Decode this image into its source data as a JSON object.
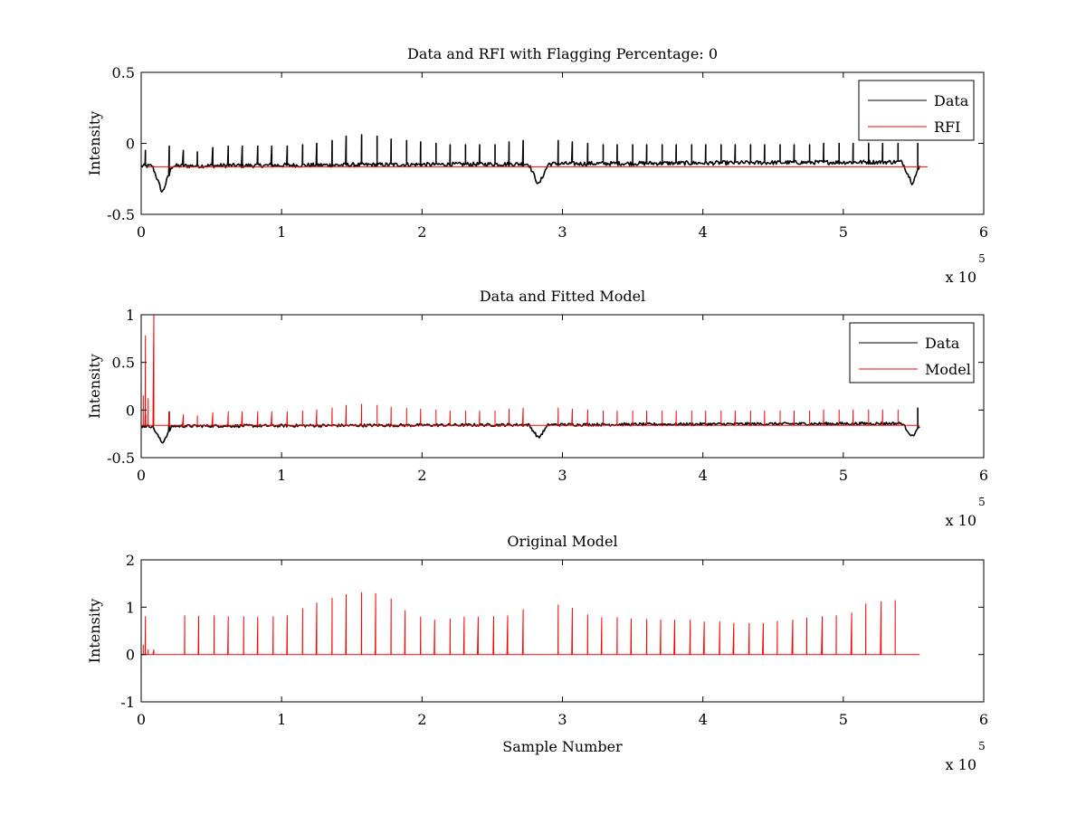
{
  "chart_data": [
    {
      "type": "line",
      "title": "Data and RFI with Flagging Percentage: 0",
      "xlabel": "",
      "ylabel": "Intensity",
      "xlim": [
        0,
        600000
      ],
      "ylim": [
        -0.5,
        0.5
      ],
      "xticks": [
        0,
        100000,
        200000,
        300000,
        400000,
        500000,
        600000
      ],
      "xtick_labels": [
        "0",
        "1",
        "2",
        "3",
        "4",
        "5",
        "6"
      ],
      "yticks": [
        -0.5,
        0,
        0.5
      ],
      "ytick_labels": [
        "-0.5",
        "0",
        "0.5"
      ],
      "x_multiplier": {
        "base": "x 10",
        "exponent": "5"
      },
      "legend_position": "top-right",
      "legend": [
        {
          "name": "Data",
          "color": "#000000"
        },
        {
          "name": "RFI",
          "color": "#ff0000"
        }
      ],
      "series": [
        {
          "name": "Data",
          "color": "#000000",
          "style": "noisy-baseline",
          "baseline": -0.16,
          "noise": 0.015,
          "x_end": 555000,
          "dips": [
            [
              15000,
              -0.35
            ],
            [
              283000,
              -0.31
            ],
            [
              549000,
              -0.31
            ]
          ],
          "spikes": [
            [
              3000,
              -0.05
            ],
            [
              20000,
              -0.02
            ],
            [
              30000,
              -0.05
            ],
            [
              40000,
              -0.06
            ],
            [
              51000,
              -0.03
            ],
            [
              62000,
              -0.02
            ],
            [
              72000,
              -0.02
            ],
            [
              83000,
              -0.02
            ],
            [
              93000,
              -0.02
            ],
            [
              104000,
              -0.02
            ],
            [
              115000,
              -0.01
            ],
            [
              125000,
              0.0
            ],
            [
              136000,
              0.02
            ],
            [
              146000,
              0.05
            ],
            [
              157000,
              0.06
            ],
            [
              168000,
              0.05
            ],
            [
              178000,
              0.03
            ],
            [
              189000,
              0.02
            ],
            [
              199000,
              0.01
            ],
            [
              210000,
              0.0
            ],
            [
              220000,
              -0.01
            ],
            [
              231000,
              -0.01
            ],
            [
              241000,
              -0.01
            ],
            [
              252000,
              -0.01
            ],
            [
              262000,
              0.01
            ],
            [
              272000,
              0.02
            ],
            [
              297000,
              0.02
            ],
            [
              307000,
              0.01
            ],
            [
              318000,
              0.0
            ],
            [
              329000,
              -0.01
            ],
            [
              339000,
              -0.01
            ],
            [
              350000,
              -0.01
            ],
            [
              360000,
              -0.01
            ],
            [
              371000,
              -0.01
            ],
            [
              381000,
              -0.01
            ],
            [
              392000,
              -0.01
            ],
            [
              402000,
              -0.01
            ],
            [
              413000,
              -0.01
            ],
            [
              423000,
              -0.01
            ],
            [
              434000,
              -0.01
            ],
            [
              444000,
              -0.01
            ],
            [
              455000,
              -0.01
            ],
            [
              465000,
              -0.01
            ],
            [
              476000,
              -0.01
            ],
            [
              486000,
              0.0
            ],
            [
              497000,
              0.0
            ],
            [
              507000,
              0.0
            ],
            [
              518000,
              0.0
            ],
            [
              528000,
              0.0
            ],
            [
              539000,
              0.0
            ],
            [
              553000,
              0.0
            ]
          ]
        },
        {
          "name": "RFI",
          "color": "#ff0000",
          "style": "flat",
          "values": [
            -0.165,
            -0.165
          ]
        }
      ]
    },
    {
      "type": "line",
      "title": "Data and Fitted Model",
      "xlabel": "",
      "ylabel": "Intensity",
      "xlim": [
        0,
        600000
      ],
      "ylim": [
        -0.5,
        1
      ],
      "xticks": [
        0,
        100000,
        200000,
        300000,
        400000,
        500000,
        600000
      ],
      "xtick_labels": [
        "0",
        "1",
        "2",
        "3",
        "4",
        "5",
        "6"
      ],
      "yticks": [
        -0.5,
        0,
        0.5,
        1
      ],
      "ytick_labels": [
        "-0.5",
        "0",
        "0.5",
        "1"
      ],
      "x_multiplier": {
        "base": "x 10",
        "exponent": "5"
      },
      "legend_position": "top-right",
      "legend": [
        {
          "name": "Data",
          "color": "#000000"
        },
        {
          "name": "Model",
          "color": "#ff0000"
        }
      ],
      "series": [
        {
          "name": "Data",
          "color": "#000000",
          "style": "noisy-baseline",
          "baseline": -0.17,
          "noise": 0.015,
          "x_end": 555000,
          "dips": [
            [
              15000,
              -0.35
            ],
            [
              283000,
              -0.31
            ],
            [
              549000,
              -0.31
            ]
          ],
          "spikes": [
            [
              3000,
              -0.05
            ],
            [
              20000,
              -0.02
            ],
            [
              553000,
              0.02
            ]
          ]
        },
        {
          "name": "Model",
          "color": "#ff0000",
          "style": "baseline-spikes",
          "baseline": -0.16,
          "x_end": 555000,
          "spikes": [
            [
              1500,
              0.15
            ],
            [
              3000,
              0.78
            ],
            [
              5000,
              0.12
            ],
            [
              9000,
              1.0
            ],
            [
              20000,
              -0.02
            ],
            [
              30000,
              -0.05
            ],
            [
              40000,
              -0.06
            ],
            [
              51000,
              -0.03
            ],
            [
              62000,
              -0.02
            ],
            [
              72000,
              -0.02
            ],
            [
              83000,
              -0.02
            ],
            [
              93000,
              -0.02
            ],
            [
              104000,
              -0.02
            ],
            [
              115000,
              -0.01
            ],
            [
              125000,
              0.0
            ],
            [
              136000,
              0.02
            ],
            [
              146000,
              0.05
            ],
            [
              157000,
              0.06
            ],
            [
              168000,
              0.05
            ],
            [
              178000,
              0.03
            ],
            [
              189000,
              0.02
            ],
            [
              199000,
              0.01
            ],
            [
              210000,
              0.0
            ],
            [
              220000,
              -0.01
            ],
            [
              231000,
              -0.01
            ],
            [
              241000,
              -0.01
            ],
            [
              252000,
              -0.01
            ],
            [
              262000,
              0.01
            ],
            [
              272000,
              0.02
            ],
            [
              297000,
              0.02
            ],
            [
              307000,
              0.01
            ],
            [
              318000,
              0.0
            ],
            [
              329000,
              -0.01
            ],
            [
              339000,
              -0.01
            ],
            [
              350000,
              -0.01
            ],
            [
              360000,
              -0.01
            ],
            [
              371000,
              -0.01
            ],
            [
              381000,
              -0.01
            ],
            [
              392000,
              -0.01
            ],
            [
              402000,
              -0.01
            ],
            [
              413000,
              -0.01
            ],
            [
              423000,
              -0.01
            ],
            [
              434000,
              -0.01
            ],
            [
              444000,
              -0.01
            ],
            [
              455000,
              -0.01
            ],
            [
              465000,
              -0.01
            ],
            [
              476000,
              -0.01
            ],
            [
              486000,
              0.0
            ],
            [
              497000,
              0.0
            ],
            [
              507000,
              0.0
            ],
            [
              518000,
              0.0
            ],
            [
              528000,
              0.0
            ],
            [
              539000,
              0.0
            ]
          ]
        }
      ]
    },
    {
      "type": "line",
      "title": "Original Model",
      "xlabel": "Sample Number",
      "ylabel": "Intensity",
      "xlim": [
        0,
        600000
      ],
      "ylim": [
        -1,
        2
      ],
      "xticks": [
        0,
        100000,
        200000,
        300000,
        400000,
        500000,
        600000
      ],
      "xtick_labels": [
        "0",
        "1",
        "2",
        "3",
        "4",
        "5",
        "6"
      ],
      "yticks": [
        -1,
        0,
        1,
        2
      ],
      "ytick_labels": [
        "-1",
        "0",
        "1",
        "2"
      ],
      "x_multiplier": {
        "base": "x 10",
        "exponent": "5"
      },
      "legend_position": "none",
      "legend": [],
      "series": [
        {
          "name": "Original Model",
          "color": "#ff0000",
          "style": "baseline-spikes",
          "baseline": 0,
          "x_end": 555000,
          "spikes": [
            [
              1500,
              0.2
            ],
            [
              3000,
              0.8
            ],
            [
              5000,
              0.1
            ],
            [
              9000,
              0.1
            ],
            [
              31000,
              0.82
            ],
            [
              41000,
              0.81
            ],
            [
              52000,
              0.82
            ],
            [
              62000,
              0.8
            ],
            [
              73000,
              0.8
            ],
            [
              83000,
              0.79
            ],
            [
              94000,
              0.8
            ],
            [
              104000,
              0.82
            ],
            [
              115000,
              0.97
            ],
            [
              125000,
              1.09
            ],
            [
              136000,
              1.19
            ],
            [
              146000,
              1.27
            ],
            [
              157000,
              1.31
            ],
            [
              167000,
              1.29
            ],
            [
              178000,
              1.17
            ],
            [
              188000,
              0.93
            ],
            [
              199000,
              0.79
            ],
            [
              209000,
              0.73
            ],
            [
              220000,
              0.75
            ],
            [
              230000,
              0.79
            ],
            [
              240000,
              0.79
            ],
            [
              251000,
              0.8
            ],
            [
              261000,
              0.82
            ],
            [
              272000,
              0.95
            ],
            [
              297000,
              1.05
            ],
            [
              307000,
              0.98
            ],
            [
              318000,
              0.84
            ],
            [
              328000,
              0.78
            ],
            [
              339000,
              0.78
            ],
            [
              349000,
              0.75
            ],
            [
              360000,
              0.74
            ],
            [
              370000,
              0.73
            ],
            [
              380000,
              0.73
            ],
            [
              391000,
              0.73
            ],
            [
              401000,
              0.69
            ],
            [
              412000,
              0.69
            ],
            [
              422000,
              0.66
            ],
            [
              433000,
              0.66
            ],
            [
              443000,
              0.66
            ],
            [
              453000,
              0.7
            ],
            [
              464000,
              0.73
            ],
            [
              474000,
              0.77
            ],
            [
              485000,
              0.8
            ],
            [
              495000,
              0.82
            ],
            [
              506000,
              0.88
            ],
            [
              516000,
              1.07
            ],
            [
              527000,
              1.12
            ],
            [
              537000,
              1.14
            ]
          ]
        }
      ]
    }
  ]
}
